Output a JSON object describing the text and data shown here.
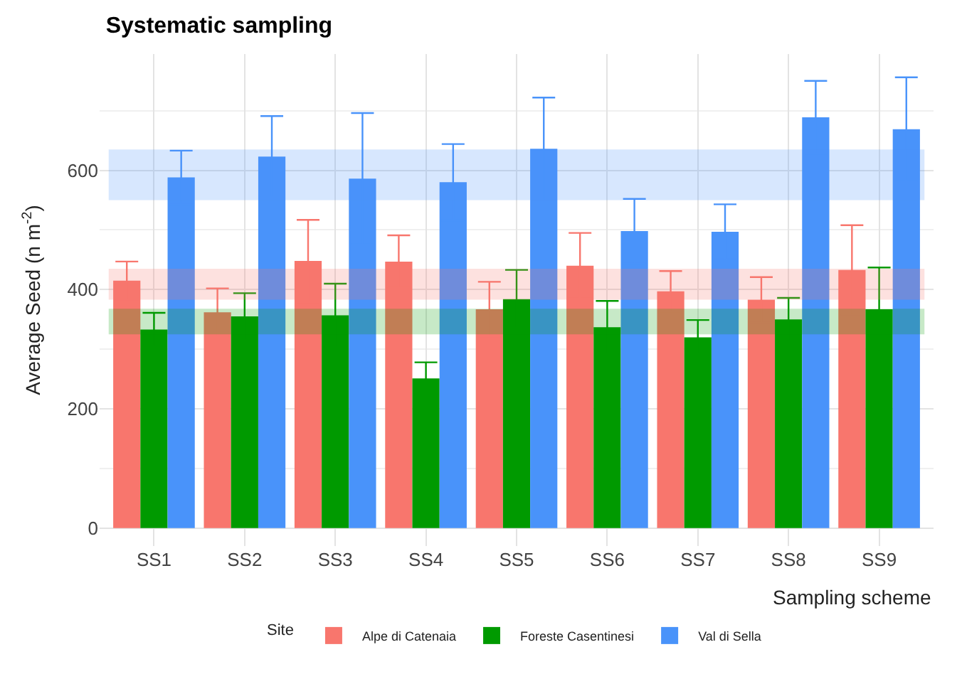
{
  "chart_data": {
    "type": "bar",
    "title": "Systematic sampling",
    "xlabel": "Sampling scheme",
    "ylabel": "Average Seed (n m$^{-2}$)",
    "legend_title": "Site",
    "categories": [
      "SS1",
      "SS2",
      "SS3",
      "SS4",
      "SS5",
      "SS6",
      "SS7",
      "SS8",
      "SS9"
    ],
    "series": [
      {
        "name": "Alpe di Catenaia",
        "color": "#f8766d",
        "values": [
          415,
          362,
          448,
          447,
          367,
          440,
          397,
          383,
          433
        ],
        "errors": [
          32,
          40,
          69,
          44,
          46,
          55,
          34,
          38,
          75
        ]
      },
      {
        "name": "Foreste Casentinesi",
        "color": "#009a00",
        "values": [
          333,
          355,
          357,
          251,
          384,
          337,
          320,
          350,
          367
        ],
        "errors": [
          28,
          39,
          53,
          27,
          49,
          44,
          29,
          36,
          70
        ]
      },
      {
        "name": "Val di Sella",
        "color": "#4993fa",
        "values": [
          588,
          623,
          586,
          580,
          636,
          498,
          497,
          689,
          669
        ],
        "errors": [
          45,
          68,
          110,
          64,
          86,
          54,
          46,
          61,
          87
        ]
      }
    ],
    "bands": [
      {
        "axis": "y",
        "from": 550,
        "to": 635,
        "color": "#4993fa"
      },
      {
        "axis": "y",
        "from": 383,
        "to": 435,
        "color": "#f8766d"
      },
      {
        "axis": "y",
        "from": 325,
        "to": 368,
        "color": "#009a00"
      }
    ],
    "ylim": [
      -30,
      795
    ],
    "yticks": [
      0,
      200,
      400,
      600
    ],
    "grid": true,
    "legend": "bottom"
  }
}
